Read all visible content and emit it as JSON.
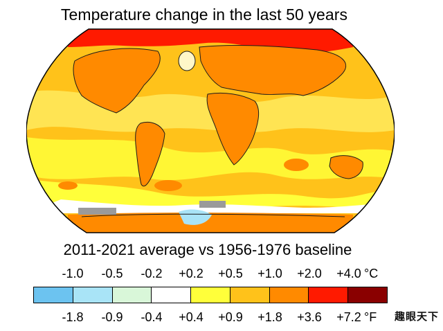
{
  "title": "Temperature change in the last 50 years",
  "subtitle": "2011-2021 average vs 1956-1976 baseline",
  "scale_celsius": [
    "-1.0",
    "-0.5",
    "-0.2",
    "+0.2",
    "+0.5",
    "+1.0",
    "+2.0",
    "+4.0"
  ],
  "scale_celsius_unit": "°C",
  "scale_fahrenheit": [
    "-1.8",
    "-0.9",
    "-0.4",
    "+0.4",
    "+0.9",
    "+1.8",
    "+3.6",
    "+7.2"
  ],
  "scale_fahrenheit_unit": "°F",
  "scale_colors": [
    "#6cc3f0",
    "#a9e4f7",
    "#d9f7d9",
    "#ffffff",
    "#ffff3a",
    "#ffc21a",
    "#ff8a00",
    "#ff1a00",
    "#8a0000"
  ],
  "watermark": "趣眼天下"
}
